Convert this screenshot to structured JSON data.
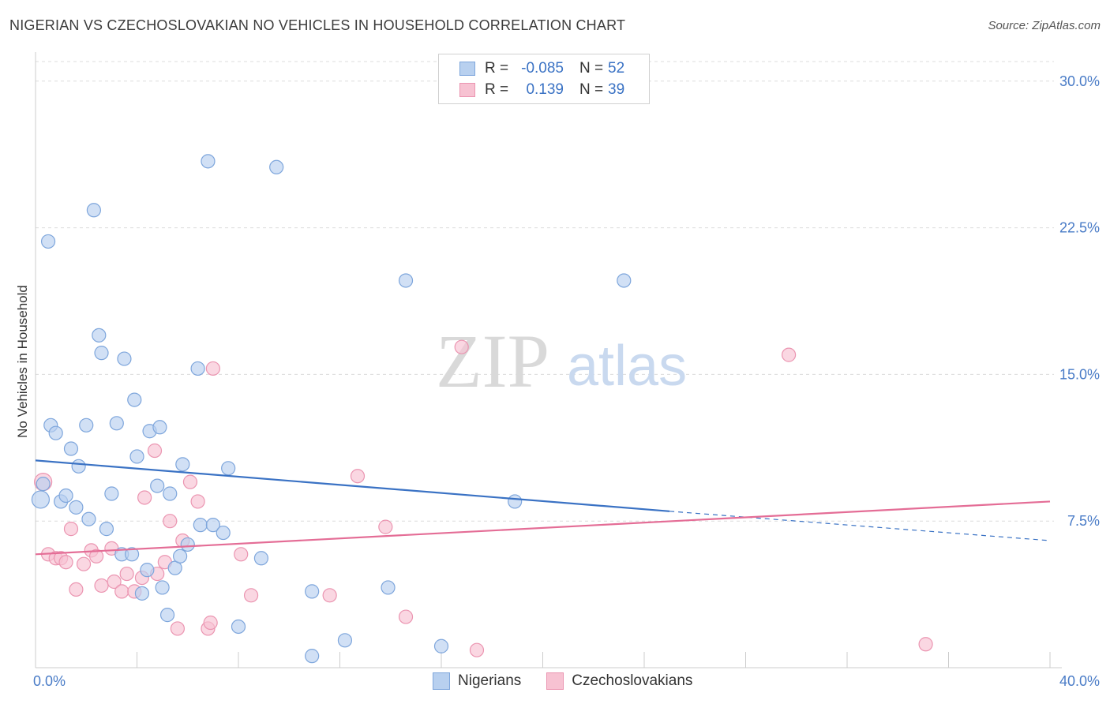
{
  "header": {
    "title": "NIGERIAN VS CZECHOSLOVAKIAN NO VEHICLES IN HOUSEHOLD CORRELATION CHART",
    "source": "Source: ZipAtlas.com"
  },
  "legend": {
    "nigerians": {
      "r_label": "R =",
      "r_value": "-0.085",
      "n_label": "N =",
      "n_value": "52"
    },
    "czechoslovakians": {
      "r_label": "R =",
      "r_value": "0.139",
      "n_label": "N =",
      "n_value": "39"
    }
  },
  "bottom_legend": {
    "nigerians": "Nigerians",
    "czechoslovakians": "Czechoslovakians"
  },
  "watermark": {
    "zip": "ZIP",
    "atlas": "atlas"
  },
  "colors": {
    "nigerians_fill": "#b8d0ef",
    "nigerians_stroke": "#7ea6dc",
    "nigerians_line": "#3a72c4",
    "czech_fill": "#f7c2d2",
    "czech_stroke": "#eb95b1",
    "czech_line": "#e46d96",
    "grid": "#dcdcdc",
    "tick_label": "#4a7cc7"
  },
  "chart_data": {
    "type": "scatter",
    "title": "NIGERIAN VS CZECHOSLOVAKIAN NO VEHICLES IN HOUSEHOLD CORRELATION CHART",
    "xlabel": "",
    "ylabel": "No Vehicles in Household",
    "xlim": [
      0,
      40
    ],
    "ylim": [
      0,
      31
    ],
    "x_tick_labels": [
      "0.0%",
      "40.0%"
    ],
    "y_ticks": [
      7.5,
      15.0,
      22.5,
      30.0
    ],
    "y_tick_labels": [
      "7.5%",
      "15.0%",
      "22.5%",
      "30.0%"
    ],
    "grid": true,
    "series": [
      {
        "name": "Nigerians",
        "r": -0.085,
        "n": 52,
        "trend": {
          "x0": 0,
          "y0": 10.6,
          "x1": 25,
          "y1": 8.0,
          "dash_x1": 40,
          "dash_y1": 6.5
        },
        "points": [
          [
            0.2,
            8.6
          ],
          [
            0.3,
            9.4
          ],
          [
            0.5,
            21.8
          ],
          [
            0.6,
            12.4
          ],
          [
            0.8,
            12.0
          ],
          [
            1.0,
            8.5
          ],
          [
            1.4,
            11.2
          ],
          [
            1.2,
            8.8
          ],
          [
            1.6,
            8.2
          ],
          [
            1.7,
            10.3
          ],
          [
            2.0,
            12.4
          ],
          [
            2.1,
            7.6
          ],
          [
            2.3,
            23.4
          ],
          [
            2.5,
            17.0
          ],
          [
            2.6,
            16.1
          ],
          [
            2.8,
            7.1
          ],
          [
            3.0,
            8.9
          ],
          [
            3.2,
            12.5
          ],
          [
            3.4,
            5.8
          ],
          [
            3.5,
            15.8
          ],
          [
            3.8,
            5.8
          ],
          [
            3.9,
            13.7
          ],
          [
            4.0,
            10.8
          ],
          [
            4.2,
            3.8
          ],
          [
            4.4,
            5.0
          ],
          [
            4.5,
            12.1
          ],
          [
            4.8,
            9.3
          ],
          [
            4.9,
            12.3
          ],
          [
            5.0,
            4.1
          ],
          [
            5.2,
            2.7
          ],
          [
            5.3,
            8.9
          ],
          [
            5.5,
            5.1
          ],
          [
            5.7,
            5.7
          ],
          [
            5.8,
            10.4
          ],
          [
            6.0,
            6.3
          ],
          [
            6.4,
            15.3
          ],
          [
            6.5,
            7.3
          ],
          [
            6.8,
            25.9
          ],
          [
            7.0,
            7.3
          ],
          [
            7.4,
            6.9
          ],
          [
            7.6,
            10.2
          ],
          [
            8.0,
            2.1
          ],
          [
            8.9,
            5.6
          ],
          [
            9.5,
            25.6
          ],
          [
            10.9,
            0.6
          ],
          [
            10.9,
            3.9
          ],
          [
            12.2,
            1.4
          ],
          [
            13.9,
            4.1
          ],
          [
            14.6,
            19.8
          ],
          [
            16.0,
            1.1
          ],
          [
            18.9,
            8.5
          ],
          [
            23.2,
            19.8
          ]
        ]
      },
      {
        "name": "Czechoslovakians",
        "r": 0.139,
        "n": 39,
        "trend": {
          "x0": 0,
          "y0": 5.8,
          "x1": 40,
          "y1": 8.5
        },
        "points": [
          [
            0.3,
            9.5
          ],
          [
            0.5,
            5.8
          ],
          [
            0.8,
            5.6
          ],
          [
            1.0,
            5.6
          ],
          [
            1.2,
            5.4
          ],
          [
            1.4,
            7.1
          ],
          [
            1.6,
            4.0
          ],
          [
            1.9,
            5.3
          ],
          [
            2.2,
            6.0
          ],
          [
            2.4,
            5.7
          ],
          [
            2.6,
            4.2
          ],
          [
            3.0,
            6.1
          ],
          [
            3.1,
            4.4
          ],
          [
            3.4,
            3.9
          ],
          [
            3.6,
            4.8
          ],
          [
            3.9,
            3.9
          ],
          [
            4.2,
            4.6
          ],
          [
            4.3,
            8.7
          ],
          [
            4.7,
            11.1
          ],
          [
            4.8,
            4.8
          ],
          [
            5.1,
            5.4
          ],
          [
            5.3,
            7.5
          ],
          [
            5.6,
            2.0
          ],
          [
            5.8,
            6.5
          ],
          [
            6.1,
            9.5
          ],
          [
            6.4,
            8.5
          ],
          [
            6.8,
            2.0
          ],
          [
            6.9,
            2.3
          ],
          [
            7.0,
            15.3
          ],
          [
            8.1,
            5.8
          ],
          [
            8.5,
            3.7
          ],
          [
            11.6,
            3.7
          ],
          [
            12.7,
            9.8
          ],
          [
            13.8,
            7.2
          ],
          [
            14.6,
            2.6
          ],
          [
            16.8,
            16.4
          ],
          [
            17.4,
            0.9
          ],
          [
            29.7,
            16.0
          ],
          [
            35.1,
            1.2
          ]
        ]
      }
    ]
  }
}
